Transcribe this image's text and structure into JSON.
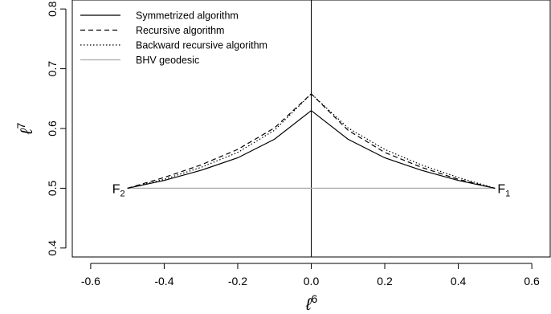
{
  "chart_data": {
    "type": "line",
    "xlabel": "ℓ",
    "xlabel_superscript": "6",
    "ylabel": "ℓ",
    "ylabel_superscript": "7",
    "xlim": [
      -0.65,
      0.65
    ],
    "ylim": [
      0.385,
      0.815
    ],
    "x_ticks": [
      -0.6,
      -0.4,
      -0.2,
      0.0,
      0.2,
      0.4,
      0.6
    ],
    "x_tick_labels": [
      "-0.6",
      "-0.4",
      "-0.2",
      "0.0",
      "0.2",
      "0.4",
      "0.6"
    ],
    "y_ticks": [
      0.4,
      0.5,
      0.6,
      0.7,
      0.8
    ],
    "y_tick_labels": [
      "0.4",
      "0.5",
      "0.6",
      "0.7",
      "0.8"
    ],
    "legend_position": "top-left",
    "vertical_line_x": 0.0,
    "series": [
      {
        "name": "Symmetrized algorithm",
        "style": "solid",
        "color": "#000000",
        "x": [
          -0.5,
          -0.4,
          -0.3,
          -0.2,
          -0.1,
          0.0,
          0.1,
          0.2,
          0.3,
          0.4,
          0.5
        ],
        "y": [
          0.5,
          0.513,
          0.53,
          0.551,
          0.582,
          0.63,
          0.582,
          0.551,
          0.53,
          0.513,
          0.5
        ]
      },
      {
        "name": "Recursive algorithm",
        "style": "dashed",
        "color": "#000000",
        "x": [
          -0.5,
          -0.4,
          -0.3,
          -0.2,
          -0.1,
          0.0,
          0.1,
          0.2,
          0.3,
          0.4,
          0.5
        ],
        "y": [
          0.5,
          0.518,
          0.539,
          0.565,
          0.601,
          0.658,
          0.597,
          0.56,
          0.535,
          0.515,
          0.5
        ]
      },
      {
        "name": "Backward recursive algorithm",
        "style": "dotted",
        "color": "#000000",
        "x": [
          -0.5,
          -0.4,
          -0.3,
          -0.2,
          -0.1,
          0.0,
          0.1,
          0.2,
          0.3,
          0.4,
          0.5
        ],
        "y": [
          0.5,
          0.515,
          0.535,
          0.56,
          0.597,
          0.658,
          0.601,
          0.565,
          0.539,
          0.518,
          0.5
        ]
      },
      {
        "name": "BHV geodesic",
        "style": "solid",
        "color": "#aaaaaa",
        "x": [
          -0.5,
          0.5
        ],
        "y": [
          0.5,
          0.5
        ]
      }
    ],
    "points": [
      {
        "label": "F",
        "subscript": "2",
        "x": -0.5,
        "y": 0.5,
        "anchor": "left"
      },
      {
        "label": "F",
        "subscript": "1",
        "x": 0.5,
        "y": 0.5,
        "anchor": "right"
      }
    ]
  }
}
